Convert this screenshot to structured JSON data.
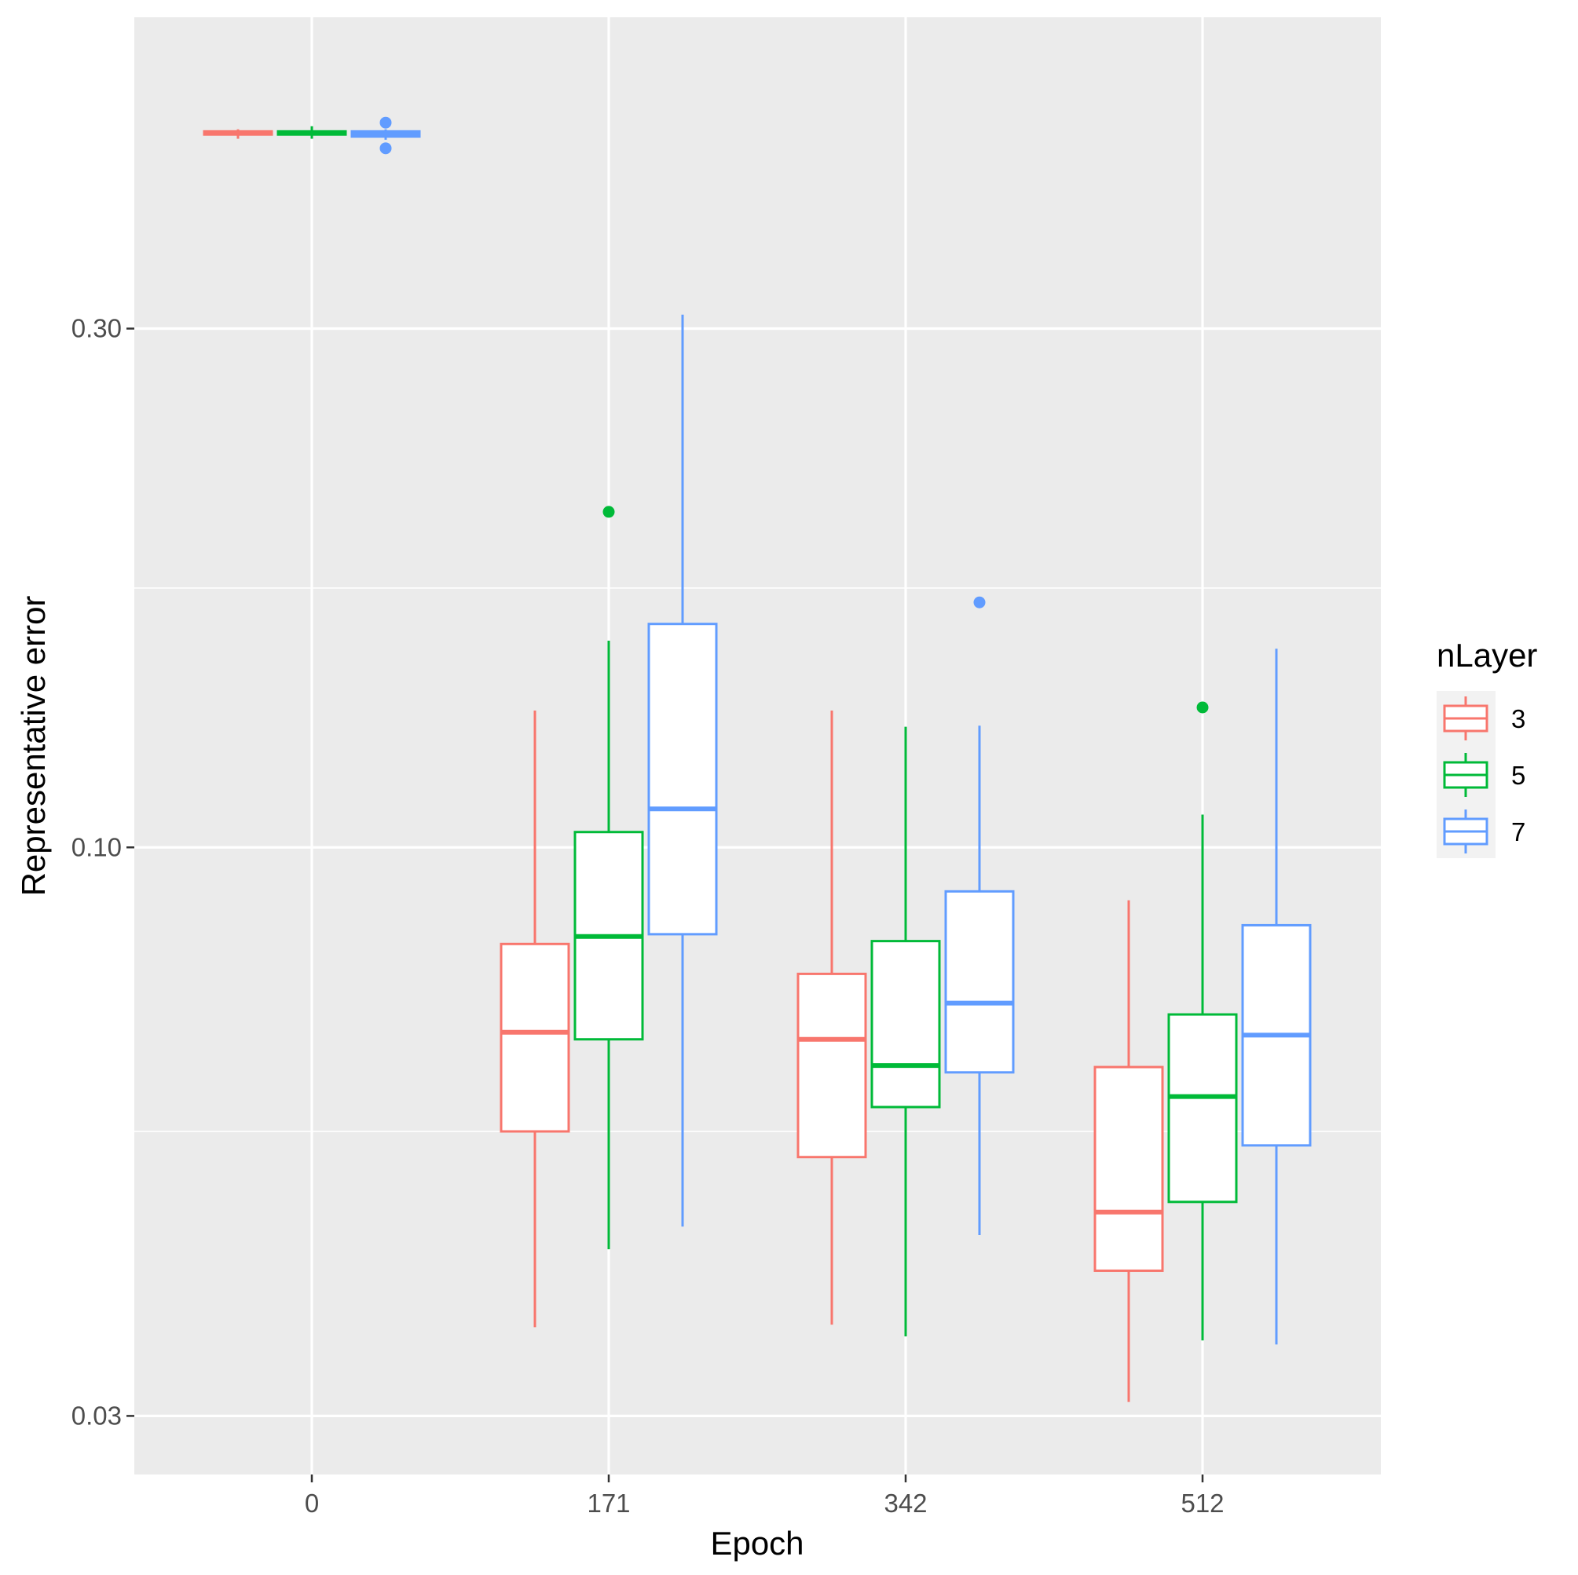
{
  "chart_data": {
    "type": "box",
    "xlabel": "Epoch",
    "ylabel": "Representative error",
    "y_scale": "log10",
    "ylim": [
      0.0265,
      0.58
    ],
    "y_ticks": [
      {
        "value": 0.03,
        "label": "0.03"
      },
      {
        "value": 0.1,
        "label": "0.10"
      },
      {
        "value": 0.3,
        "label": "0.30"
      }
    ],
    "y_minor_grid": [
      0.0548,
      0.1732
    ],
    "categories": [
      "0",
      "171",
      "342",
      "512"
    ],
    "legend": {
      "title": "nLayer",
      "position": "right",
      "entries": [
        "3",
        "5",
        "7"
      ]
    },
    "grid": true,
    "series": [
      {
        "name": "3",
        "color": "#F8766D",
        "boxes": [
          {
            "category": "0",
            "whisker_low": 0.4485,
            "q1": 0.4525,
            "median": 0.454,
            "q3": 0.4555,
            "whisker_high": 0.4575,
            "outliers": []
          },
          {
            "category": "171",
            "whisker_low": 0.0362,
            "q1": 0.0548,
            "median": 0.0676,
            "q3": 0.0815,
            "whisker_high": 0.1336,
            "outliers": []
          },
          {
            "category": "342",
            "whisker_low": 0.0364,
            "q1": 0.0519,
            "median": 0.0666,
            "q3": 0.0765,
            "whisker_high": 0.1336,
            "outliers": []
          },
          {
            "category": "512",
            "whisker_low": 0.0309,
            "q1": 0.0408,
            "median": 0.0462,
            "q3": 0.0628,
            "whisker_high": 0.0894,
            "outliers": []
          }
        ]
      },
      {
        "name": "5",
        "color": "#00BA38",
        "boxes": [
          {
            "category": "0",
            "whisker_low": 0.4485,
            "q1": 0.4525,
            "median": 0.454,
            "q3": 0.4555,
            "whisker_high": 0.4605,
            "outliers": []
          },
          {
            "category": "171",
            "whisker_low": 0.0427,
            "q1": 0.0666,
            "median": 0.0828,
            "q3": 0.1033,
            "whisker_high": 0.1549,
            "outliers": [
              0.2035
            ]
          },
          {
            "category": "342",
            "whisker_low": 0.0355,
            "q1": 0.0577,
            "median": 0.063,
            "q3": 0.082,
            "whisker_high": 0.1291,
            "outliers": []
          },
          {
            "category": "512",
            "whisker_low": 0.0352,
            "q1": 0.0472,
            "median": 0.059,
            "q3": 0.0702,
            "whisker_high": 0.1072,
            "outliers": [
              0.1345
            ]
          }
        ]
      },
      {
        "name": "7",
        "color": "#619CFF",
        "boxes": [
          {
            "category": "0",
            "whisker_low": 0.4475,
            "q1": 0.4505,
            "median": 0.4525,
            "q3": 0.4555,
            "whisker_high": 0.4575,
            "outliers": [
              0.4395,
              0.464
            ]
          },
          {
            "category": "171",
            "whisker_low": 0.0448,
            "q1": 0.0832,
            "median": 0.1085,
            "q3": 0.1605,
            "whisker_high": 0.309,
            "outliers": []
          },
          {
            "category": "342",
            "whisker_low": 0.044,
            "q1": 0.0621,
            "median": 0.0719,
            "q3": 0.0911,
            "whisker_high": 0.1294,
            "outliers": [
              0.168
            ]
          },
          {
            "category": "512",
            "whisker_low": 0.0349,
            "q1": 0.0532,
            "median": 0.0672,
            "q3": 0.0848,
            "whisker_high": 0.1523,
            "outliers": []
          }
        ]
      }
    ]
  }
}
